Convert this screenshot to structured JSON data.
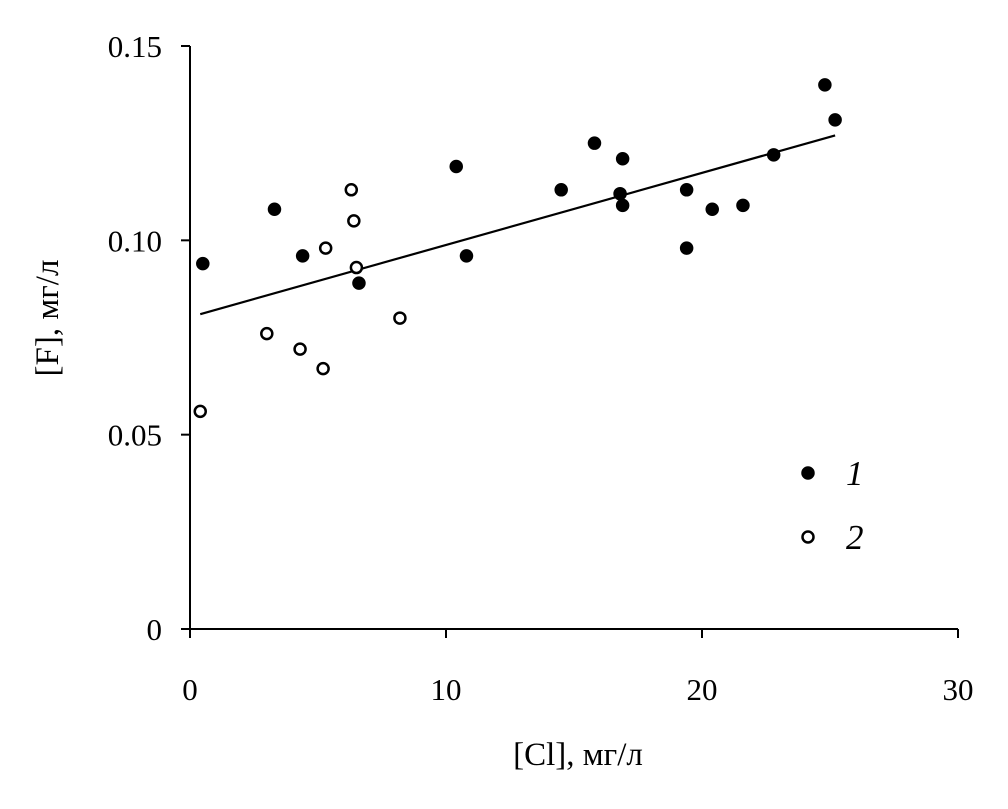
{
  "chart_data": {
    "type": "scatter",
    "title": "",
    "xlabel": "[Cl], мг/л",
    "ylabel": "[F], мг/л",
    "xlim": [
      0,
      30
    ],
    "ylim": [
      0,
      0.15
    ],
    "x_ticks": [
      0,
      10,
      20,
      30
    ],
    "y_ticks": [
      0,
      0.05,
      0.1,
      0.15
    ],
    "x_tick_labels": [
      "0",
      "10",
      "20",
      "30"
    ],
    "y_tick_labels": [
      "0",
      "0.05",
      "0.10",
      "0.15"
    ],
    "grid": false,
    "legend_position": "lower-right",
    "series": [
      {
        "name": "1",
        "marker": "filled-circle",
        "color": "#000000",
        "points": [
          {
            "x": 0.5,
            "y": 0.094
          },
          {
            "x": 3.3,
            "y": 0.108
          },
          {
            "x": 4.4,
            "y": 0.096
          },
          {
            "x": 6.6,
            "y": 0.089
          },
          {
            "x": 10.4,
            "y": 0.119
          },
          {
            "x": 10.8,
            "y": 0.096
          },
          {
            "x": 14.5,
            "y": 0.113
          },
          {
            "x": 15.8,
            "y": 0.125
          },
          {
            "x": 16.9,
            "y": 0.121
          },
          {
            "x": 16.8,
            "y": 0.112
          },
          {
            "x": 16.9,
            "y": 0.109
          },
          {
            "x": 19.4,
            "y": 0.113
          },
          {
            "x": 19.4,
            "y": 0.098
          },
          {
            "x": 20.4,
            "y": 0.108
          },
          {
            "x": 21.6,
            "y": 0.109
          },
          {
            "x": 22.8,
            "y": 0.122
          },
          {
            "x": 24.8,
            "y": 0.14
          },
          {
            "x": 25.2,
            "y": 0.131
          }
        ]
      },
      {
        "name": "2",
        "marker": "open-circle",
        "color": "#000000",
        "points": [
          {
            "x": 0.4,
            "y": 0.056
          },
          {
            "x": 3.0,
            "y": 0.076
          },
          {
            "x": 4.3,
            "y": 0.072
          },
          {
            "x": 5.2,
            "y": 0.067
          },
          {
            "x": 5.3,
            "y": 0.098
          },
          {
            "x": 6.3,
            "y": 0.113
          },
          {
            "x": 6.4,
            "y": 0.105
          },
          {
            "x": 6.5,
            "y": 0.093
          },
          {
            "x": 8.2,
            "y": 0.08
          }
        ]
      }
    ],
    "trendline": {
      "type": "linear",
      "x_start": 0.4,
      "y_start": 0.081,
      "x_end": 25.2,
      "y_end": 0.127
    }
  }
}
